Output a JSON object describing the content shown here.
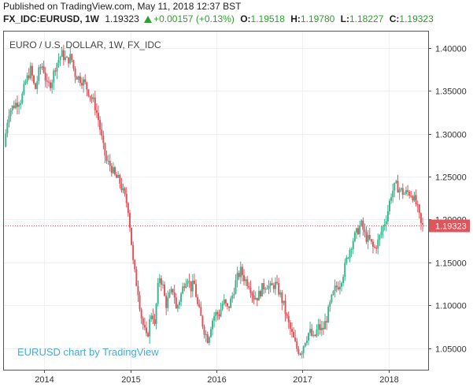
{
  "header": {
    "published": "Published on TradingView.com, May 11, 2018 12:37 BST",
    "symbol": "FX_IDC:EURUSD, 1W",
    "last": "1.19323",
    "change": "+0.00157 (+0.13%)",
    "o_label": "O:",
    "o_value": "1.19518",
    "h_label": "H:",
    "h_value": "1.19780",
    "l_label": "L:",
    "l_value": "1.18227",
    "c_label": "C:",
    "c_value": "1.19323"
  },
  "colors": {
    "up": "#3fb48f",
    "down": "#e0555c",
    "price_tag": "#e0555c",
    "watermark": "#4aa8dd",
    "grid": "#eef0f3"
  },
  "chart_data": {
    "type": "candlestick",
    "title": "EURO / U.S. DOLLAR, 1W, FX_IDC",
    "watermark": "EURUSD chart by TradingView",
    "x_ticks": [
      "2014",
      "2015",
      "2016",
      "2017",
      "2018"
    ],
    "y_ticks": [
      "1.40000",
      "1.35000",
      "1.30000",
      "1.25000",
      "1.20000",
      "1.15000",
      "1.10000",
      "1.05000"
    ],
    "y_tick_values": [
      1.4,
      1.35,
      1.3,
      1.25,
      1.2,
      1.15,
      1.1,
      1.05
    ],
    "ylim": [
      1.025,
      1.42
    ],
    "xlim": [
      2013.52,
      2018.46
    ],
    "last_price": 1.19323,
    "last_price_label": "1.19323",
    "path_anchors": [
      [
        2013.55,
        1.285
      ],
      [
        2013.6,
        1.325
      ],
      [
        2013.68,
        1.335
      ],
      [
        2013.75,
        1.34
      ],
      [
        2013.8,
        1.36
      ],
      [
        2013.86,
        1.375
      ],
      [
        2013.91,
        1.35
      ],
      [
        2013.96,
        1.375
      ],
      [
        2014.0,
        1.38
      ],
      [
        2014.05,
        1.355
      ],
      [
        2014.1,
        1.36
      ],
      [
        2014.15,
        1.38
      ],
      [
        2014.22,
        1.393
      ],
      [
        2014.28,
        1.385
      ],
      [
        2014.33,
        1.39
      ],
      [
        2014.37,
        1.37
      ],
      [
        2014.42,
        1.365
      ],
      [
        2014.48,
        1.36
      ],
      [
        2014.55,
        1.345
      ],
      [
        2014.6,
        1.335
      ],
      [
        2014.65,
        1.315
      ],
      [
        2014.7,
        1.285
      ],
      [
        2014.74,
        1.268
      ],
      [
        2014.79,
        1.262
      ],
      [
        2014.84,
        1.25
      ],
      [
        2014.89,
        1.245
      ],
      [
        2014.94,
        1.23
      ],
      [
        2014.99,
        1.215
      ],
      [
        2015.02,
        1.185
      ],
      [
        2015.05,
        1.15
      ],
      [
        2015.08,
        1.13
      ],
      [
        2015.11,
        1.115
      ],
      [
        2015.14,
        1.09
      ],
      [
        2015.17,
        1.075
      ],
      [
        2015.21,
        1.06
      ],
      [
        2015.24,
        1.08
      ],
      [
        2015.27,
        1.095
      ],
      [
        2015.3,
        1.075
      ],
      [
        2015.33,
        1.115
      ],
      [
        2015.36,
        1.135
      ],
      [
        2015.4,
        1.12
      ],
      [
        2015.43,
        1.1
      ],
      [
        2015.47,
        1.11
      ],
      [
        2015.52,
        1.12
      ],
      [
        2015.55,
        1.095
      ],
      [
        2015.6,
        1.11
      ],
      [
        2015.64,
        1.125
      ],
      [
        2015.68,
        1.135
      ],
      [
        2015.72,
        1.12
      ],
      [
        2015.76,
        1.125
      ],
      [
        2015.8,
        1.1
      ],
      [
        2015.84,
        1.085
      ],
      [
        2015.88,
        1.07
      ],
      [
        2015.92,
        1.06
      ],
      [
        2015.96,
        1.08
      ],
      [
        2016.0,
        1.09
      ],
      [
        2016.05,
        1.09
      ],
      [
        2016.1,
        1.105
      ],
      [
        2016.15,
        1.095
      ],
      [
        2016.2,
        1.11
      ],
      [
        2016.25,
        1.13
      ],
      [
        2016.3,
        1.14
      ],
      [
        2016.35,
        1.13
      ],
      [
        2016.4,
        1.125
      ],
      [
        2016.45,
        1.11
      ],
      [
        2016.5,
        1.11
      ],
      [
        2016.55,
        1.12
      ],
      [
        2016.6,
        1.125
      ],
      [
        2016.65,
        1.12
      ],
      [
        2016.7,
        1.125
      ],
      [
        2016.75,
        1.115
      ],
      [
        2016.8,
        1.1
      ],
      [
        2016.85,
        1.08
      ],
      [
        2016.9,
        1.065
      ],
      [
        2016.95,
        1.05
      ],
      [
        2017.0,
        1.045
      ],
      [
        2017.05,
        1.06
      ],
      [
        2017.1,
        1.07
      ],
      [
        2017.15,
        1.06
      ],
      [
        2017.2,
        1.075
      ],
      [
        2017.25,
        1.07
      ],
      [
        2017.3,
        1.085
      ],
      [
        2017.35,
        1.105
      ],
      [
        2017.4,
        1.12
      ],
      [
        2017.45,
        1.125
      ],
      [
        2017.5,
        1.14
      ],
      [
        2017.55,
        1.16
      ],
      [
        2017.6,
        1.175
      ],
      [
        2017.65,
        1.185
      ],
      [
        2017.7,
        1.195
      ],
      [
        2017.75,
        1.18
      ],
      [
        2017.8,
        1.175
      ],
      [
        2017.85,
        1.165
      ],
      [
        2017.9,
        1.175
      ],
      [
        2017.95,
        1.19
      ],
      [
        2018.0,
        1.205
      ],
      [
        2018.05,
        1.23
      ],
      [
        2018.1,
        1.24
      ],
      [
        2018.15,
        1.235
      ],
      [
        2018.2,
        1.23
      ],
      [
        2018.25,
        1.232
      ],
      [
        2018.3,
        1.228
      ],
      [
        2018.35,
        1.215
      ],
      [
        2018.4,
        1.192
      ]
    ]
  }
}
